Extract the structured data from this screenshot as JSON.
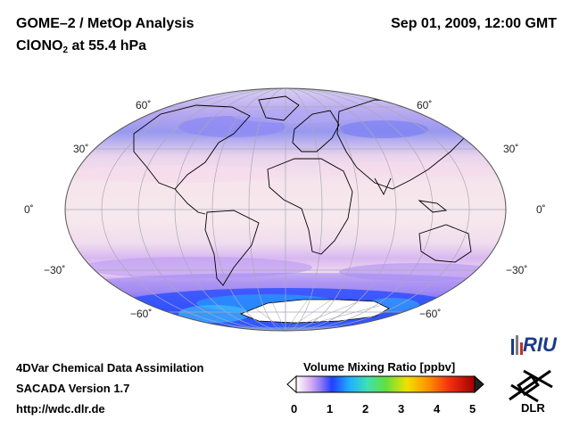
{
  "header": {
    "title_left": "GOME–2 / MetOp Analysis",
    "title_right": "Sep 01, 2009, 12:00 GMT",
    "species_prefix": "ClONO",
    "species_sub": "2",
    "species_suffix": " at 55.4 hPa"
  },
  "map": {
    "projection": "Mollweide",
    "lat_labels": {
      "n60": "60˚",
      "n30": "30˚",
      "eq": "0˚",
      "s30": "−30˚",
      "s60": "−60˚"
    }
  },
  "colorbar": {
    "title": "Volume Mixing Ratio [ppbv]",
    "ticks": [
      "0",
      "1",
      "2",
      "3",
      "4",
      "5"
    ],
    "colors": [
      "#ffffff",
      "#c8a0e8",
      "#7b6cf0",
      "#2040ff",
      "#20b0ff",
      "#40e0a0",
      "#80e040",
      "#f0e000",
      "#ff9000",
      "#f03010",
      "#a00000"
    ]
  },
  "footer": {
    "line1": "4DVar Chemical Data Assimilation",
    "line2": "SACADA Version 1.7",
    "line3": "http://wdc.dlr.de"
  },
  "logos": {
    "riu": "RIU",
    "dlr": "DLR"
  }
}
